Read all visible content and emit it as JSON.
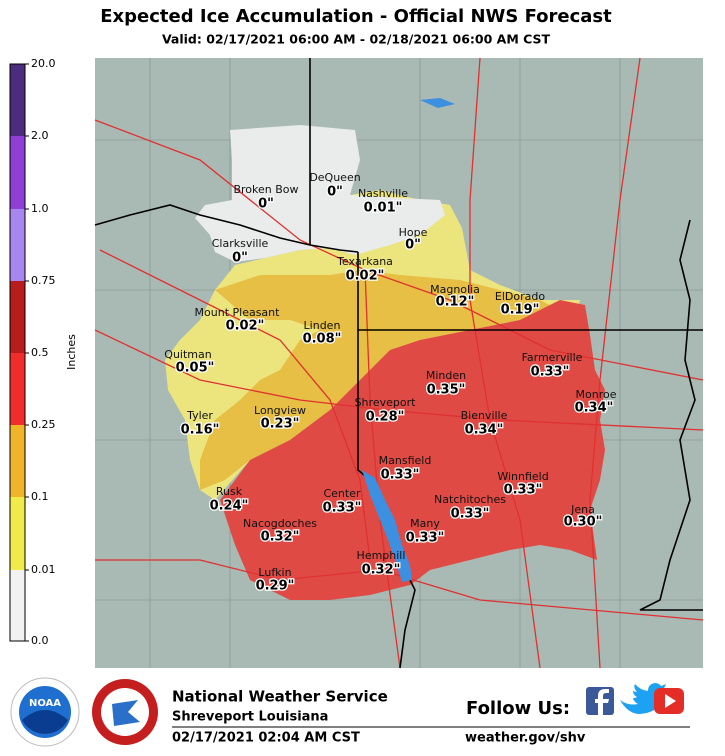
{
  "header": {
    "title": "Expected Ice Accumulation - Official NWS Forecast",
    "subtitle": "Valid: 02/17/2021 06:00 AM - 02/18/2021 06:00 AM CST"
  },
  "legend": {
    "label": "Inches",
    "ticks": [
      "20.0",
      "2.0",
      "1.0",
      "0.75",
      "0.5",
      "0.25",
      "0.1",
      "0.01",
      "0.0"
    ]
  },
  "cities": [
    {
      "name": "Broken Bow",
      "value": "0\""
    },
    {
      "name": "DeQueen",
      "value": "0\""
    },
    {
      "name": "Nashville",
      "value": "0.01\""
    },
    {
      "name": "Hope",
      "value": "0\""
    },
    {
      "name": "Clarksville",
      "value": "0\""
    },
    {
      "name": "Texarkana",
      "value": "0.02\""
    },
    {
      "name": "Magnolia",
      "value": "0.12\""
    },
    {
      "name": "ElDorado",
      "value": "0.19\""
    },
    {
      "name": "Mount Pleasant",
      "value": "0.02\""
    },
    {
      "name": "Linden",
      "value": "0.08\""
    },
    {
      "name": "Quitman",
      "value": "0.05\""
    },
    {
      "name": "Minden",
      "value": "0.35\""
    },
    {
      "name": "Farmerville",
      "value": "0.33\""
    },
    {
      "name": "Monroe",
      "value": "0.34\""
    },
    {
      "name": "Tyler",
      "value": "0.16\""
    },
    {
      "name": "Longview",
      "value": "0.23\""
    },
    {
      "name": "Shreveport",
      "value": "0.28\""
    },
    {
      "name": "Bienville",
      "value": "0.34\""
    },
    {
      "name": "Mansfield",
      "value": "0.33\""
    },
    {
      "name": "Winnfield",
      "value": "0.33\""
    },
    {
      "name": "Rusk",
      "value": "0.24\""
    },
    {
      "name": "Center",
      "value": "0.33\""
    },
    {
      "name": "Natchitoches",
      "value": "0.33\""
    },
    {
      "name": "Jena",
      "value": "0.30\""
    },
    {
      "name": "Nacogdoches",
      "value": "0.32\""
    },
    {
      "name": "Many",
      "value": "0.33\""
    },
    {
      "name": "Hemphill",
      "value": "0.32\""
    },
    {
      "name": "Lufkin",
      "value": "0.29\""
    }
  ],
  "footer": {
    "logo": "NOAA",
    "office": "National Weather Service",
    "location": "Shreveport Louisiana",
    "issued": "02/17/2021 02:04 AM CST",
    "follow": "Follow Us:",
    "website": "weather.gov/shv"
  }
}
